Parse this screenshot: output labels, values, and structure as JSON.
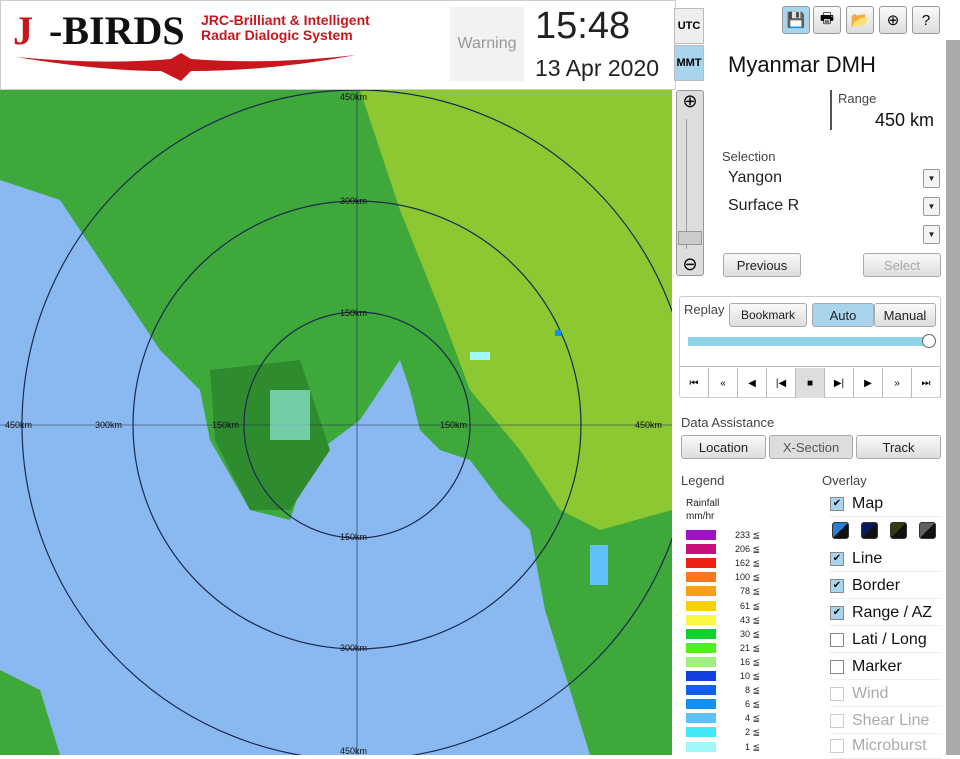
{
  "header": {
    "logo_main": "J-BIRDS",
    "logo_sub1": "JRC-Brilliant & Intelligent",
    "logo_sub2": "Radar Dialogic System",
    "warning": "Warning",
    "time": "15:48",
    "date": "13 Apr 2020",
    "utc": "UTC",
    "mmt": "MMT"
  },
  "toolbar": {
    "icons": [
      "save-icon",
      "print-icon",
      "open-folder-icon",
      "add-icon",
      "help-icon"
    ]
  },
  "site": "Myanmar DMH",
  "range": {
    "label": "Range",
    "value": "450 km"
  },
  "selection": {
    "label": "Selection",
    "values": [
      "Yangon",
      "Surface R",
      ""
    ],
    "previous": "Previous",
    "select": "Select"
  },
  "replay": {
    "label": "Replay",
    "bookmark": "Bookmark",
    "auto": "Auto",
    "manual": "Manual",
    "progress": 1.0
  },
  "playback": [
    "⏮",
    "«",
    "◀",
    "|◀",
    "■",
    "▶|",
    "▶",
    "»",
    "⏭"
  ],
  "data_assistance": {
    "label": "Data Assistance",
    "buttons": [
      "Location",
      "X-Section",
      "Track"
    ]
  },
  "legend": {
    "label": "Legend",
    "title1": "Rainfall",
    "title2": "mm/hr",
    "items": [
      {
        "v": "233 ≦",
        "c": "#a010c8"
      },
      {
        "v": "206 ≦",
        "c": "#c8107a"
      },
      {
        "v": "162 ≦",
        "c": "#f02010"
      },
      {
        "v": "100 ≦",
        "c": "#f87820"
      },
      {
        "v": "78 ≦",
        "c": "#f8a010"
      },
      {
        "v": "61 ≦",
        "c": "#f8d000"
      },
      {
        "v": "43 ≦",
        "c": "#f8f840"
      },
      {
        "v": "30 ≦",
        "c": "#10d030"
      },
      {
        "v": "21 ≦",
        "c": "#50f020"
      },
      {
        "v": "16 ≦",
        "c": "#a0f080"
      },
      {
        "v": "10 ≦",
        "c": "#1040e0"
      },
      {
        "v": "8 ≦",
        "c": "#1060f0"
      },
      {
        "v": "6 ≦",
        "c": "#1090f0"
      },
      {
        "v": "4 ≦",
        "c": "#60c0f8"
      },
      {
        "v": "2 ≦",
        "c": "#40e8f8"
      },
      {
        "v": "1 ≦",
        "c": "#a0f8f8"
      }
    ]
  },
  "overlay": {
    "label": "Overlay",
    "items": [
      {
        "label": "Map",
        "checked": true
      },
      {
        "label": "Line",
        "checked": true
      },
      {
        "label": "Border",
        "checked": true
      },
      {
        "label": "Range / AZ",
        "checked": true
      },
      {
        "label": "Lati / Long",
        "checked": false
      },
      {
        "label": "Marker",
        "checked": false
      },
      {
        "label": "Wind",
        "checked": false,
        "disabled": true
      },
      {
        "label": "Shear Line",
        "checked": false,
        "disabled": true
      },
      {
        "label": "Microburst",
        "checked": false,
        "disabled": true
      }
    ],
    "map_styles": [
      "#2a7fd0",
      "#0a1a60",
      "#3a3a10",
      "#606060"
    ]
  },
  "map": {
    "range_labels": [
      "150km",
      "300km",
      "450km"
    ]
  }
}
